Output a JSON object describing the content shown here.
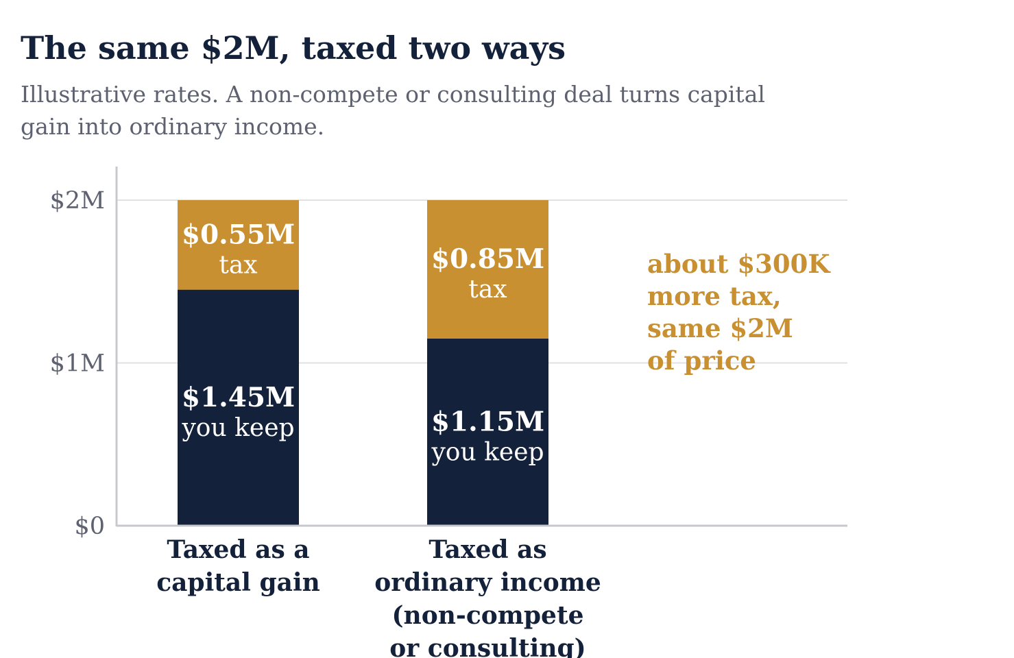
{
  "title": "The same $2M, taxed two ways",
  "subtitle": "Illustrative rates. A non-compete or consulting deal turns capital gain into ordinary income.",
  "colors": {
    "keep": "#14213a",
    "tax": "#c89030",
    "grid": "#e1e1e1",
    "axis": "#c6c8ce",
    "tick_text": "#5e6270",
    "label_text": "#14213a",
    "note_text": "#c89030"
  },
  "chart_data": {
    "type": "bar",
    "stacked": true,
    "categories": [
      [
        "Taxed as a",
        "capital gain"
      ],
      [
        "Taxed as",
        "ordinary income",
        "(non-compete",
        "or consulting)"
      ]
    ],
    "series": [
      {
        "values": [
          1.45,
          1.15
        ],
        "value_labels": [
          "$1.45M",
          "$1.15M"
        ],
        "caption": "you keep"
      },
      {
        "values": [
          0.55,
          0.85
        ],
        "value_labels": [
          "$0.55M",
          "$0.85M"
        ],
        "caption": "tax"
      }
    ],
    "y_ticks": [
      {
        "value": 0,
        "label": "$0"
      },
      {
        "value": 1,
        "label": "$1M"
      },
      {
        "value": 2,
        "label": "$2M"
      }
    ],
    "ylim": [
      0,
      2.2
    ],
    "y_unit": "millions of dollars",
    "grid": true,
    "annotation": {
      "lines": [
        "about $300K",
        "more tax,",
        "same $2M",
        "of price"
      ]
    }
  }
}
